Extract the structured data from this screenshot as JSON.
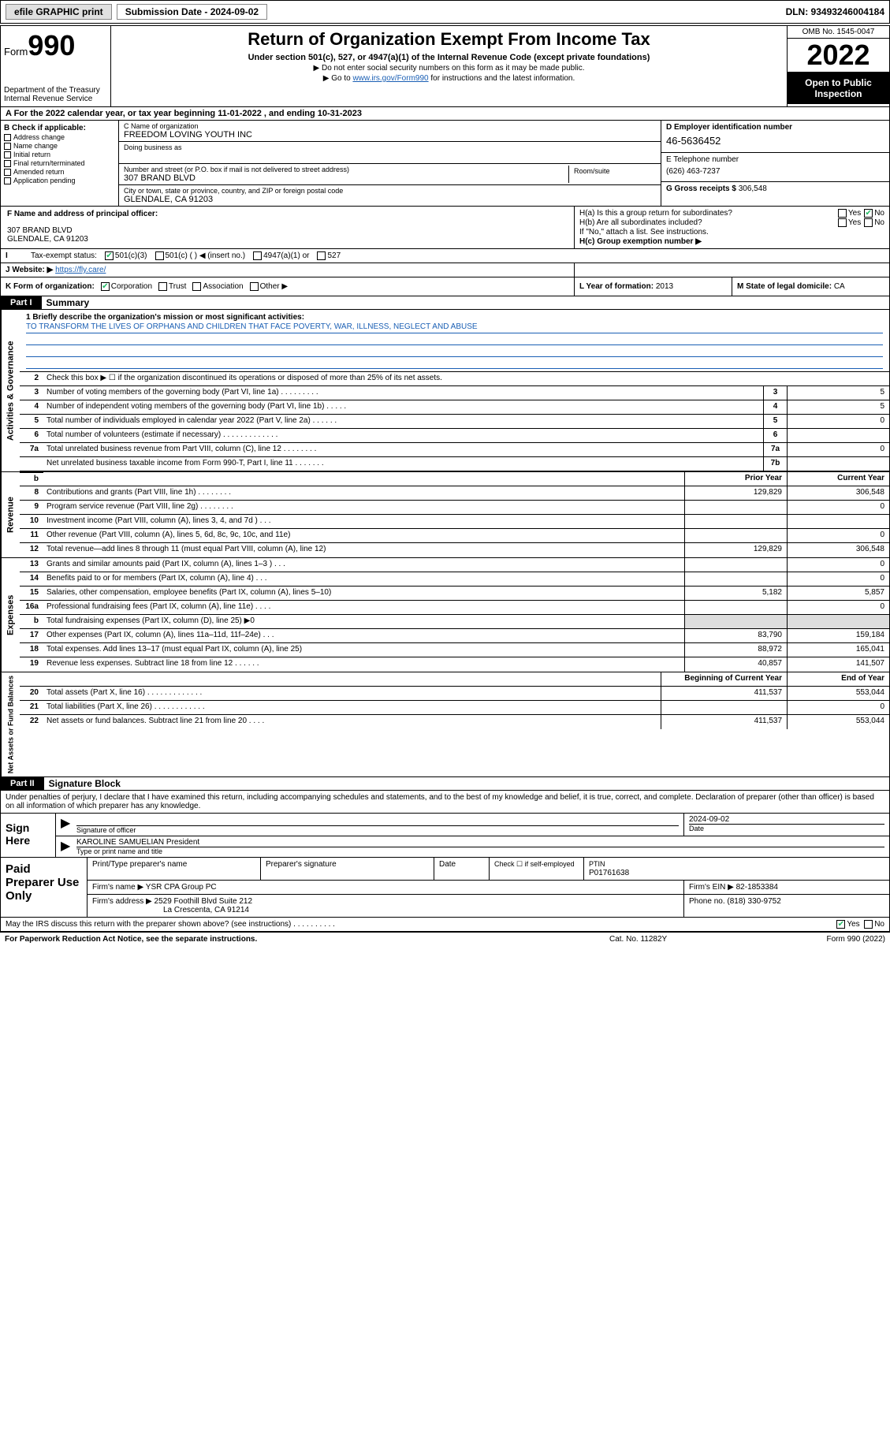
{
  "topbar": {
    "efile": "efile GRAPHIC print",
    "sub_label": "Submission Date - 2024-09-02",
    "dln": "DLN: 93493246004184"
  },
  "header": {
    "form_prefix": "Form",
    "form_num": "990",
    "dept": "Department of the Treasury\nInternal Revenue Service",
    "title": "Return of Organization Exempt From Income Tax",
    "sub1": "Under section 501(c), 527, or 4947(a)(1) of the Internal Revenue Code (except private foundations)",
    "sub2": "▶ Do not enter social security numbers on this form as it may be made public.",
    "sub3_pre": "▶ Go to ",
    "sub3_link": "www.irs.gov/Form990",
    "sub3_post": " for instructions and the latest information.",
    "omb": "OMB No. 1545-0047",
    "year": "2022",
    "open": "Open to Public Inspection"
  },
  "row_a": "A For the 2022 calendar year, or tax year beginning 11-01-2022    , and ending 10-31-2023",
  "col_b": {
    "hdr": "B Check if applicable:",
    "items": [
      "Address change",
      "Name change",
      "Initial return",
      "Final return/terminated",
      "Amended return",
      "Application pending"
    ]
  },
  "col_c": {
    "name_lbl": "C Name of organization",
    "name": "FREEDOM LOVING YOUTH INC",
    "dba_lbl": "Doing business as",
    "dba": "",
    "addr_lbl": "Number and street (or P.O. box if mail is not delivered to street address)",
    "room_lbl": "Room/suite",
    "addr": "307 BRAND BLVD",
    "city_lbl": "City or town, state or province, country, and ZIP or foreign postal code",
    "city": "GLENDALE, CA  91203"
  },
  "col_d": {
    "ein_lbl": "D Employer identification number",
    "ein": "46-5636452",
    "tel_lbl": "E Telephone number",
    "tel": "(626) 463-7237",
    "gross_lbl": "G Gross receipts $",
    "gross": "306,548"
  },
  "row_f": {
    "lbl": "F Name and address of principal officer:",
    "addr1": "307 BRAND BLVD",
    "addr2": "GLENDALE, CA  91203"
  },
  "row_h": {
    "ha": "H(a)  Is this a group return for subordinates?",
    "hb": "H(b)  Are all subordinates included?",
    "hb_note": "If \"No,\" attach a list. See instructions.",
    "hc": "H(c)  Group exemption number ▶",
    "yes": "Yes",
    "no": "No"
  },
  "row_i": {
    "lbl": "Tax-exempt status:",
    "o1": "501(c)(3)",
    "o2": "501(c) (  ) ◀ (insert no.)",
    "o3": "4947(a)(1) or",
    "o4": "527"
  },
  "row_j": {
    "lbl": "J   Website: ▶",
    "val": "https://fly.care/"
  },
  "row_k": {
    "k1_lbl": "K Form of organization:",
    "opts": [
      "Corporation",
      "Trust",
      "Association",
      "Other ▶"
    ],
    "k2_lbl": "L Year of formation:",
    "k2_val": "2013",
    "k3_lbl": "M State of legal domicile:",
    "k3_val": "CA"
  },
  "part1": {
    "hdr": "Part I",
    "title": "Summary",
    "tab1": "Activities & Governance",
    "tab2": "Revenue",
    "tab3": "Expenses",
    "tab4": "Net Assets or Fund Balances",
    "l1_lbl": "1   Briefly describe the organization's mission or most significant activities:",
    "l1_txt": "TO TRANSFORM THE LIVES OF ORPHANS AND CHILDREN THAT FACE POVERTY, WAR, ILLNESS, NEGLECT AND ABUSE",
    "l2": "Check this box ▶ ☐  if the organization discontinued its operations or disposed of more than 25% of its net assets.",
    "lines_gov": [
      {
        "n": "3",
        "t": "Number of voting members of the governing body (Part VI, line 1a)  .    .    .    .    .    .    .    .    .",
        "box": "3",
        "v": "5"
      },
      {
        "n": "4",
        "t": "Number of independent voting members of the governing body (Part VI, line 1b)  .    .    .    .    .",
        "box": "4",
        "v": "5"
      },
      {
        "n": "5",
        "t": "Total number of individuals employed in calendar year 2022 (Part V, line 2a)  .    .    .    .    .    .",
        "box": "5",
        "v": "0"
      },
      {
        "n": "6",
        "t": "Total number of volunteers (estimate if necessary)  .    .    .    .    .    .    .    .    .    .    .    .    .",
        "box": "6",
        "v": ""
      },
      {
        "n": "7a",
        "t": "Total unrelated business revenue from Part VIII, column (C), line 12  .    .    .    .    .    .    .    .",
        "box": "7a",
        "v": "0"
      },
      {
        "n": "",
        "t": "Net unrelated business taxable income from Form 990-T, Part I, line 11  .    .    .    .    .    .    .",
        "box": "7b",
        "v": ""
      }
    ],
    "col_hdr_prior": "Prior Year",
    "col_hdr_curr": "Current Year",
    "lines_rev": [
      {
        "n": "8",
        "t": "Contributions and grants (Part VIII, line 1h)  .    .    .    .    .    .    .    .",
        "p": "129,829",
        "c": "306,548"
      },
      {
        "n": "9",
        "t": "Program service revenue (Part VIII, line 2g)  .    .    .    .    .    .    .    .",
        "p": "",
        "c": "0"
      },
      {
        "n": "10",
        "t": "Investment income (Part VIII, column (A), lines 3, 4, and 7d )  .    .    .",
        "p": "",
        "c": ""
      },
      {
        "n": "11",
        "t": "Other revenue (Part VIII, column (A), lines 5, 6d, 8c, 9c, 10c, and 11e)",
        "p": "",
        "c": "0"
      },
      {
        "n": "12",
        "t": "Total revenue—add lines 8 through 11 (must equal Part VIII, column (A), line 12)",
        "p": "129,829",
        "c": "306,548"
      }
    ],
    "lines_exp": [
      {
        "n": "13",
        "t": "Grants and similar amounts paid (Part IX, column (A), lines 1–3 )  .    .    .",
        "p": "",
        "c": "0"
      },
      {
        "n": "14",
        "t": "Benefits paid to or for members (Part IX, column (A), line 4)  .    .    .",
        "p": "",
        "c": "0"
      },
      {
        "n": "15",
        "t": "Salaries, other compensation, employee benefits (Part IX, column (A), lines 5–10)",
        "p": "5,182",
        "c": "5,857"
      },
      {
        "n": "16a",
        "t": "Professional fundraising fees (Part IX, column (A), line 11e)  .    .    .    .",
        "p": "",
        "c": "0"
      },
      {
        "n": "b",
        "t": "Total fundraising expenses (Part IX, column (D), line 25) ▶0",
        "p": "grey",
        "c": "grey"
      },
      {
        "n": "17",
        "t": "Other expenses (Part IX, column (A), lines 11a–11d, 11f–24e)  .    .    .",
        "p": "83,790",
        "c": "159,184"
      },
      {
        "n": "18",
        "t": "Total expenses. Add lines 13–17 (must equal Part IX, column (A), line 25)",
        "p": "88,972",
        "c": "165,041"
      },
      {
        "n": "19",
        "t": "Revenue less expenses. Subtract line 18 from line 12  .    .    .    .    .    .",
        "p": "40,857",
        "c": "141,507"
      }
    ],
    "col_hdr_beg": "Beginning of Current Year",
    "col_hdr_end": "End of Year",
    "lines_net": [
      {
        "n": "20",
        "t": "Total assets (Part X, line 16)  .    .    .    .    .    .    .    .    .    .    .    .    .",
        "p": "411,537",
        "c": "553,044"
      },
      {
        "n": "21",
        "t": "Total liabilities (Part X, line 26)  .    .    .    .    .    .    .    .    .    .    .    .",
        "p": "",
        "c": "0"
      },
      {
        "n": "22",
        "t": "Net assets or fund balances. Subtract line 21 from line 20  .    .    .    .",
        "p": "411,537",
        "c": "553,044"
      }
    ]
  },
  "part2": {
    "hdr": "Part II",
    "title": "Signature Block",
    "decl": "Under penalties of perjury, I declare that I have examined this return, including accompanying schedules and statements, and to the best of my knowledge and belief, it is true, correct, and complete. Declaration of preparer (other than officer) is based on all information of which preparer has any knowledge.",
    "sign_here": "Sign Here",
    "sig_officer": "Signature of officer",
    "sig_date_lbl": "Date",
    "sig_date": "2024-09-02",
    "sig_name": "KAROLINE SAMUELIAN  President",
    "sig_name_lbl": "Type or print name and title",
    "paid": "Paid Preparer Use Only",
    "p_name_lbl": "Print/Type preparer's name",
    "p_sig_lbl": "Preparer's signature",
    "p_date_lbl": "Date",
    "p_chk": "Check ☐ if self-employed",
    "ptin_lbl": "PTIN",
    "ptin": "P01761638",
    "firm_name_lbl": "Firm's name    ▶",
    "firm_name": "YSR CPA Group PC",
    "firm_ein_lbl": "Firm's EIN ▶",
    "firm_ein": "82-1853384",
    "firm_addr_lbl": "Firm's address ▶",
    "firm_addr1": "2529 Foothill Blvd Suite 212",
    "firm_addr2": "La Crescenta, CA  91214",
    "firm_phone_lbl": "Phone no.",
    "firm_phone": "(818) 330-9752",
    "discuss": "May the IRS discuss this return with the preparer shown above? (see instructions)   .    .    .    .    .    .    .    .    .    .",
    "yes": "Yes",
    "no": "No"
  },
  "footer": {
    "l": "For Paperwork Reduction Act Notice, see the separate instructions.",
    "c": "Cat. No. 11282Y",
    "r": "Form 990 (2022)"
  },
  "colors": {
    "link": "#1a5fb4",
    "check": "#2b6"
  }
}
